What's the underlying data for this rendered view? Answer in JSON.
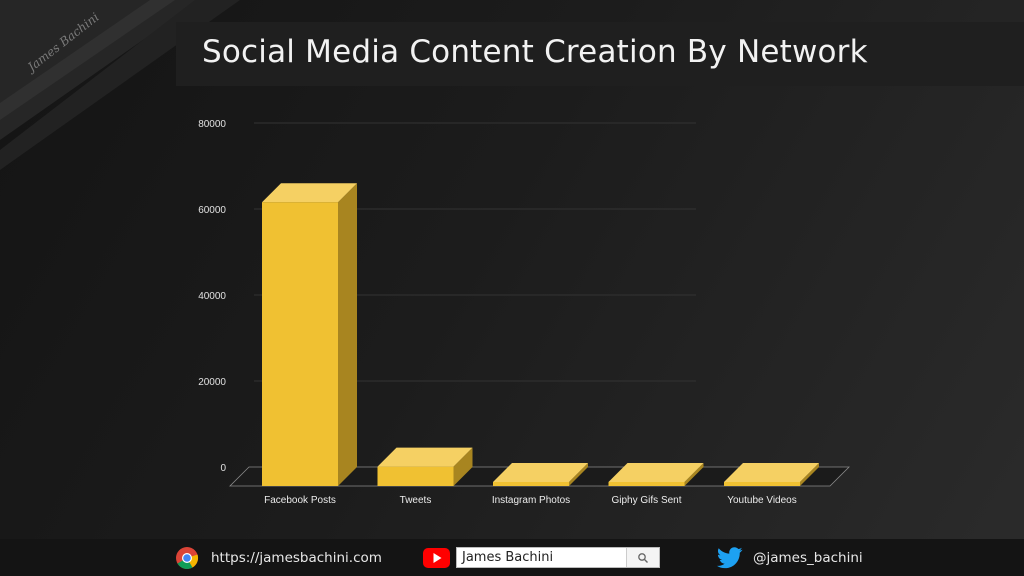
{
  "brand": {
    "signature": "James Bachini"
  },
  "header": {
    "title": "Social Media Content Creation By Network"
  },
  "chart_data": {
    "type": "bar",
    "style": "3d",
    "categories": [
      "Facebook Posts",
      "Tweets",
      "Instagram Photos",
      "Giphy Gifs Sent",
      "Youtube Videos"
    ],
    "values": [
      66000,
      4500,
      600,
      200,
      100
    ],
    "ylim": [
      0,
      80000
    ],
    "yticks": [
      "0",
      "20000",
      "40000",
      "60000",
      "80000"
    ],
    "grid": true,
    "bar_color": "#f0c132",
    "title": "",
    "xlabel": "",
    "ylabel": ""
  },
  "footer": {
    "website": {
      "icon": "chrome-icon",
      "text": "https://jamesbachini.com"
    },
    "youtube": {
      "icon": "youtube-icon",
      "search_value": "James Bachini",
      "search_icon": "search-icon"
    },
    "twitter": {
      "icon": "twitter-icon",
      "text": "@james_bachini"
    }
  },
  "colors": {
    "bar": "#f0c132",
    "bar_side": "#a88520",
    "bar_top": "#f5d063",
    "background": "#1a1a1a",
    "title_bar": "#1f1f1f",
    "footer": "#141414"
  }
}
